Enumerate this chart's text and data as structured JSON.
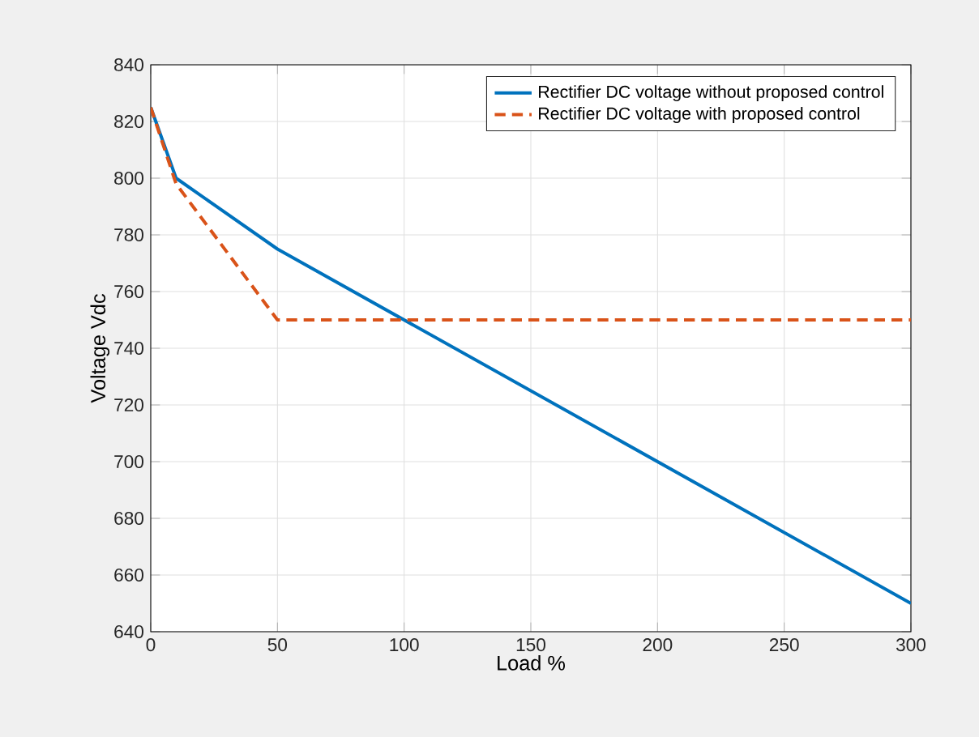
{
  "chart_data": {
    "type": "line",
    "xlabel": "Load %",
    "ylabel": "Voltage Vdc",
    "xlim": [
      0,
      300
    ],
    "ylim": [
      640,
      840
    ],
    "xticks": [
      0,
      50,
      100,
      150,
      200,
      250,
      300
    ],
    "yticks": [
      640,
      660,
      680,
      700,
      720,
      740,
      760,
      780,
      800,
      820,
      840
    ],
    "grid": true,
    "legend": "top right",
    "series": [
      {
        "name": "Rectifier DC voltage without proposed control",
        "color": "#0072bd",
        "line_style": "solid",
        "x": [
          0,
          10,
          50,
          300
        ],
        "values": [
          825,
          800,
          775,
          650
        ]
      },
      {
        "name": "Rectifier DC voltage with proposed control",
        "color": "#d95319",
        "line_style": "dashed",
        "x": [
          0,
          10,
          50,
          300
        ],
        "values": [
          825,
          798,
          750,
          750
        ]
      }
    ]
  }
}
